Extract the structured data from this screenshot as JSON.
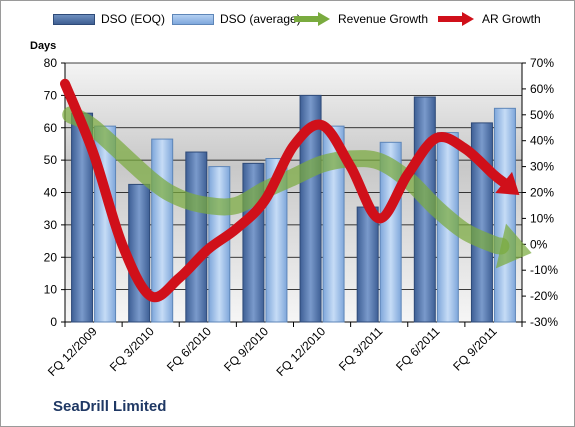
{
  "chart_data": {
    "type": "bar",
    "title": "",
    "ylabel": "Days",
    "xlabel": "",
    "categories": [
      "FQ 12/2009",
      "FQ 3/2010",
      "FQ 6/2010",
      "FQ 9/2010",
      "FQ 12/2010",
      "FQ 3/2011",
      "FQ 6/2011",
      "FQ 9/2011"
    ],
    "series": [
      {
        "name": "DSO (EOQ)",
        "kind": "bar",
        "axis": "left",
        "values": [
          64.5,
          42.5,
          52.5,
          49,
          70,
          35.5,
          69.5,
          61.5
        ]
      },
      {
        "name": "DSO (average)",
        "kind": "bar",
        "axis": "left",
        "values": [
          60.5,
          56.5,
          48,
          50.5,
          60.5,
          55.5,
          58.5,
          66
        ]
      },
      {
        "name": "Revenue Growth",
        "kind": "arrow-line",
        "axis": "right",
        "x": [
          -0.4,
          0,
          1,
          1.5,
          2,
          2.5,
          3,
          3.5,
          4,
          4.5,
          5,
          5.5,
          6,
          6.5,
          7,
          7.6
        ],
        "values": [
          50,
          45,
          25,
          18,
          15,
          15,
          21,
          26,
          31,
          33,
          32,
          25,
          14,
          5,
          0,
          -3
        ]
      },
      {
        "name": "AR Growth",
        "kind": "arrow-line",
        "axis": "right",
        "x": [
          -0.5,
          0,
          0.5,
          1,
          1.5,
          2,
          2.5,
          3,
          3.5,
          4,
          4.5,
          5,
          5.5,
          6,
          6.5,
          7,
          7.4
        ],
        "values": [
          62,
          35,
          0,
          -20,
          -13,
          -2,
          6,
          17,
          38,
          46,
          30,
          10,
          27,
          41,
          37,
          27,
          20
        ]
      }
    ],
    "ylim": [
      0,
      80
    ],
    "yticks": [
      "0",
      "10",
      "20",
      "30",
      "40",
      "50",
      "60",
      "70",
      "80"
    ],
    "y2lim": [
      -30,
      70
    ],
    "y2ticks": [
      "-30%",
      "-20%",
      "-10%",
      "0%",
      "10%",
      "20%",
      "30%",
      "40%",
      "50%",
      "60%",
      "70%"
    ],
    "grid": true,
    "legend_position": "top",
    "colors": {
      "bar_eoq": "#4f6fa3",
      "bar_avg": "#8fb4e3",
      "revenue_growth": "#7aab3f",
      "ar_growth": "#d0101a",
      "plot_background": "#c0c0c0",
      "brand_text": "#1f3864"
    }
  },
  "legend": {
    "items": [
      "DSO (EOQ)",
      "DSO (average)",
      "Revenue Growth",
      "AR Growth"
    ]
  },
  "footer": {
    "company": "SeaDrill Limited"
  }
}
